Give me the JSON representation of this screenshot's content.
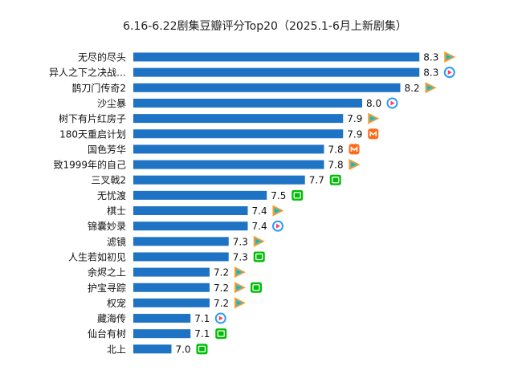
{
  "chart_data": {
    "type": "bar",
    "orientation": "horizontal",
    "title": "6.16-6.22剧集豆瓣评分Top20（2025.1-6月上新剧集）",
    "xlabel": "",
    "ylabel": "",
    "xlim": [
      6.8,
      8.4
    ],
    "grid": false,
    "legend": "none",
    "bar_color": "#1f73c4",
    "platform_icons": {
      "tencent": {
        "name": "tencent-video-icon",
        "colors": [
          "#ff9a1f",
          "#3fb3f0",
          "#1fbf5f"
        ]
      },
      "youku": {
        "name": "youku-icon",
        "colors": [
          "#2a9cf6",
          "#ff3d6a"
        ]
      },
      "mango": {
        "name": "mango-tv-icon",
        "colors": [
          "#ff6a1a"
        ]
      },
      "iqiyi": {
        "name": "iqiyi-icon",
        "colors": [
          "#00be06"
        ]
      }
    },
    "items": [
      {
        "name": "无尽的尽头",
        "value": 8.3,
        "platforms": [
          "tencent"
        ]
      },
      {
        "name": "异人之下之决战…",
        "value": 8.3,
        "platforms": [
          "youku"
        ]
      },
      {
        "name": "鹊刀门传奇2",
        "value": 8.2,
        "platforms": [
          "tencent"
        ]
      },
      {
        "name": "沙尘暴",
        "value": 8.0,
        "platforms": [
          "youku"
        ]
      },
      {
        "name": "树下有片红房子",
        "value": 7.9,
        "platforms": [
          "tencent"
        ]
      },
      {
        "name": "180天重启计划",
        "value": 7.9,
        "platforms": [
          "mango"
        ]
      },
      {
        "name": "国色芳华",
        "value": 7.8,
        "platforms": [
          "mango"
        ]
      },
      {
        "name": "致1999年的自己",
        "value": 7.8,
        "platforms": [
          "tencent"
        ]
      },
      {
        "name": "三叉戟2",
        "value": 7.7,
        "platforms": [
          "iqiyi"
        ]
      },
      {
        "name": "无忧渡",
        "value": 7.5,
        "platforms": [
          "iqiyi"
        ]
      },
      {
        "name": "棋士",
        "value": 7.4,
        "platforms": [
          "tencent"
        ]
      },
      {
        "name": "锦囊妙录",
        "value": 7.4,
        "platforms": [
          "youku"
        ]
      },
      {
        "name": "滤镜",
        "value": 7.3,
        "platforms": [
          "tencent"
        ]
      },
      {
        "name": "人生若如初见",
        "value": 7.3,
        "platforms": [
          "iqiyi"
        ]
      },
      {
        "name": "余烬之上",
        "value": 7.2,
        "platforms": [
          "tencent"
        ]
      },
      {
        "name": "护宝寻踪",
        "value": 7.2,
        "platforms": [
          "tencent",
          "iqiyi"
        ]
      },
      {
        "name": "权宠",
        "value": 7.2,
        "platforms": [
          "tencent"
        ]
      },
      {
        "name": "藏海传",
        "value": 7.1,
        "platforms": [
          "youku"
        ]
      },
      {
        "name": "仙台有树",
        "value": 7.1,
        "platforms": [
          "iqiyi"
        ]
      },
      {
        "name": "北上",
        "value": 7.0,
        "platforms": [
          "iqiyi"
        ]
      }
    ]
  }
}
